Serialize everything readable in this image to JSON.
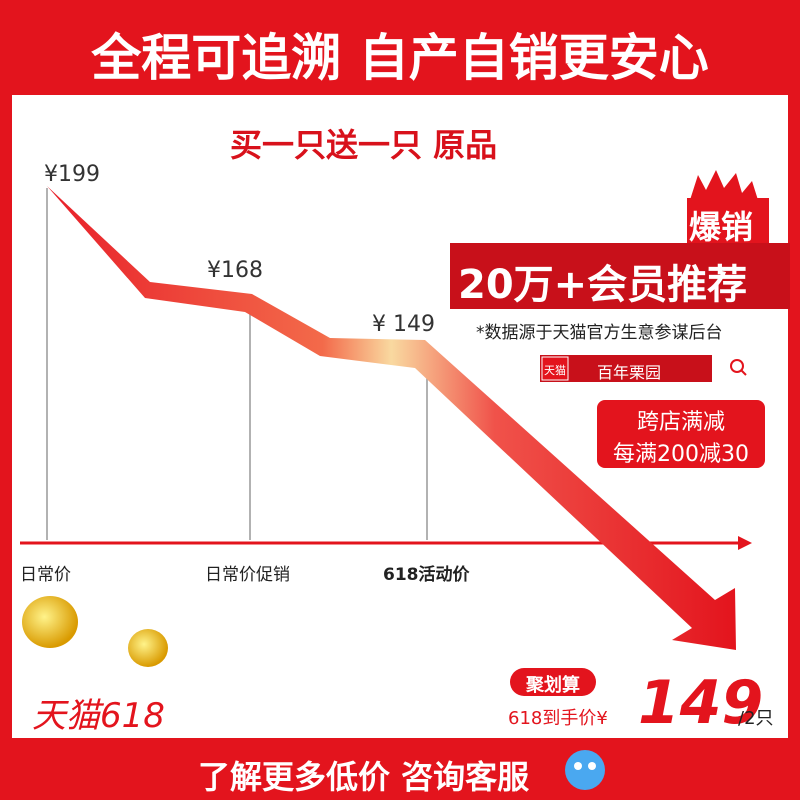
{
  "header": {
    "title": "全程可追溯 自产自销更安心"
  },
  "subtitle": "买一只送一只 原品",
  "chart": {
    "price_labels": [
      "¥199",
      "¥168",
      "¥ 149"
    ],
    "axis_labels": [
      "日常价",
      "日常价促销",
      "618活动价"
    ]
  },
  "badge": {
    "hot": "爆销",
    "members": "20万+会员推荐",
    "source": "*数据源于天猫官方生意参谋后台"
  },
  "store": {
    "tag": "天猫",
    "name": "百年栗园"
  },
  "promo": {
    "line1": "跨店满减",
    "line2": "每满200减30"
  },
  "brand": "天猫618",
  "deal": {
    "tag": "聚划算",
    "price_prefix": "618到手价¥",
    "price": "149",
    "unit": "/2只"
  },
  "footer": {
    "text": "了解更多低价 咨询客服"
  }
}
